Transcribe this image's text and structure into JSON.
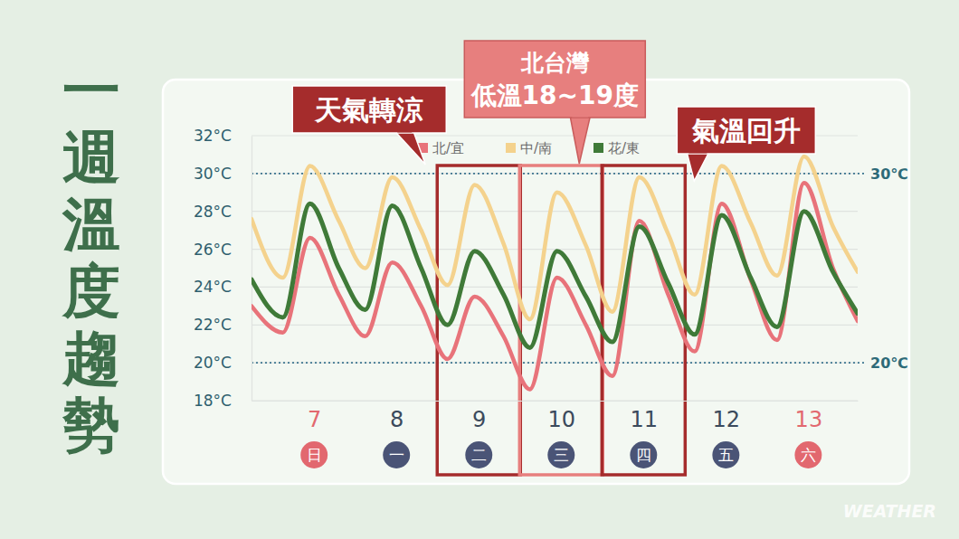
{
  "chart_data": {
    "type": "line",
    "title": "一週溫度趨勢",
    "x": [
      6.24,
      6.62,
      6.95,
      7.3,
      7.62,
      7.95,
      8.3,
      8.62,
      8.95,
      9.3,
      9.62,
      9.95,
      10.3,
      10.62,
      10.95,
      11.3,
      11.62,
      11.95,
      12.3,
      12.62,
      12.95,
      13.3,
      13.6
    ],
    "xlim": [
      6.24,
      13.6
    ],
    "xticks": [
      7,
      8,
      9,
      10,
      11,
      12,
      13
    ],
    "x_sublabels": [
      {
        "label": "日",
        "color": "#e2686f"
      },
      {
        "label": "一",
        "color": "#4a5476"
      },
      {
        "label": "二",
        "color": "#4a5476"
      },
      {
        "label": "三",
        "color": "#4a5476"
      },
      {
        "label": "四",
        "color": "#4a5476"
      },
      {
        "label": "五",
        "color": "#4a5476"
      },
      {
        "label": "六",
        "color": "#e2686f"
      }
    ],
    "ylim": [
      18,
      32
    ],
    "yticks": [
      {
        "value": 18,
        "label": "18°C"
      },
      {
        "value": 20,
        "label": "20°C"
      },
      {
        "value": 22,
        "label": "22°C"
      },
      {
        "value": 24,
        "label": "24°C"
      },
      {
        "value": 26,
        "label": "26°C"
      },
      {
        "value": 28,
        "label": "28°C"
      },
      {
        "value": 30,
        "label": "30°C"
      },
      {
        "value": 32,
        "label": "32°C"
      }
    ],
    "grid": true,
    "legend": "top",
    "series": [
      {
        "name": "北/宜",
        "color": "#e8737a",
        "values": [
          23.0,
          21.6,
          26.6,
          23.6,
          21.4,
          25.3,
          23.0,
          20.2,
          23.5,
          21.4,
          18.6,
          24.5,
          22.0,
          19.3,
          27.5,
          23.6,
          20.6,
          28.4,
          24.4,
          21.2,
          29.5,
          25.0,
          22.2
        ]
      },
      {
        "name": "中/南",
        "color": "#f4d28d",
        "values": [
          27.6,
          24.5,
          30.4,
          27.5,
          25.0,
          29.8,
          27.0,
          24.1,
          29.4,
          26.3,
          22.3,
          29.0,
          26.2,
          22.7,
          29.8,
          26.8,
          23.6,
          30.4,
          27.4,
          24.6,
          30.9,
          27.2,
          24.8
        ]
      },
      {
        "name": "花/東",
        "color": "#3f7a38",
        "values": [
          24.4,
          22.4,
          28.4,
          25.0,
          22.8,
          28.3,
          25.0,
          22.0,
          25.9,
          23.6,
          20.8,
          25.9,
          23.5,
          21.1,
          27.2,
          24.2,
          21.5,
          27.8,
          24.5,
          21.9,
          28.0,
          24.8,
          22.6
        ]
      }
    ],
    "reference_lines": [
      {
        "value": 30,
        "label": "30℃"
      },
      {
        "value": 20,
        "label": "20℃"
      }
    ],
    "annotations": [
      {
        "text": [
          "天氣轉涼"
        ],
        "x": 9,
        "color": "#a52c2c"
      },
      {
        "text": [
          "北台灣",
          "低溫18~19度"
        ],
        "x": 10,
        "color": "#e77f7e"
      },
      {
        "text": [
          "氣溫回升"
        ],
        "x": 11,
        "color": "#a52c2c"
      }
    ],
    "watermark": "WEATHER"
  }
}
